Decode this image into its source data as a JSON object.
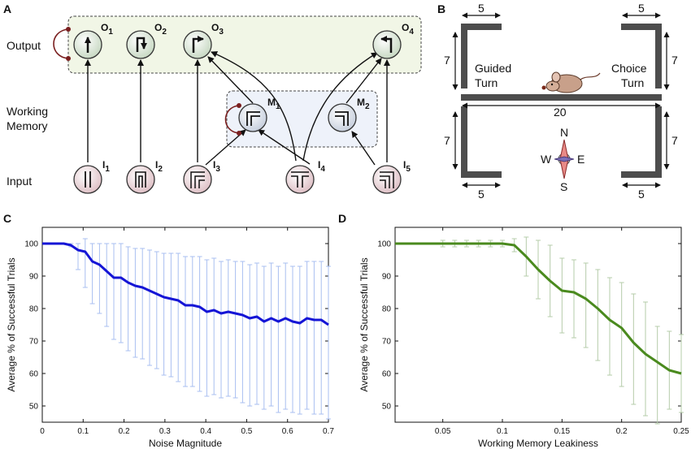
{
  "panel_labels": {
    "a": "A",
    "b": "B",
    "c": "C",
    "d": "D"
  },
  "panel_a": {
    "row_labels": {
      "output": "Output",
      "wm_line1": "Working",
      "wm_line2": "Memory",
      "input": "Input"
    },
    "nodes": {
      "O1": {
        "letter": "O",
        "sub": "1"
      },
      "O2": {
        "letter": "O",
        "sub": "2"
      },
      "O3": {
        "letter": "O",
        "sub": "3"
      },
      "O4": {
        "letter": "O",
        "sub": "4"
      },
      "M1": {
        "letter": "M",
        "sub": "1"
      },
      "M2": {
        "letter": "M",
        "sub": "2"
      },
      "I1": {
        "letter": "I",
        "sub": "1"
      },
      "I2": {
        "letter": "I",
        "sub": "2"
      },
      "I3": {
        "letter": "I",
        "sub": "3"
      },
      "I4": {
        "letter": "I",
        "sub": "4"
      },
      "I5": {
        "letter": "I",
        "sub": "5"
      }
    },
    "colors": {
      "output_node": "#dfeadb",
      "wm_node": "#dde3ec",
      "input_node": "#ecd6da",
      "output_box": "#f1f6e6",
      "wm_box": "#eef2fa",
      "inhibition": "#7a1f1f"
    }
  },
  "panel_b": {
    "dims": {
      "top_left": "5",
      "top_right": "5",
      "bottom_left": "5",
      "bottom_right": "5",
      "left_upper": "7",
      "right_upper": "7",
      "left_lower": "7",
      "right_lower": "7",
      "center": "20"
    },
    "guided_line1": "Guided",
    "guided_line2": "Turn",
    "choice_line1": "Choice",
    "choice_line2": "Turn",
    "compass": {
      "n": "N",
      "s": "S",
      "e": "E",
      "w": "W"
    }
  },
  "chart_data": [
    {
      "type": "line",
      "panel": "C",
      "xlabel": "Noise Magnitude",
      "ylabel": "Average % of Successful Trials",
      "xlim": [
        0,
        0.7
      ],
      "ylim": [
        45,
        105
      ],
      "xticks": [
        0,
        0.1,
        0.2,
        0.3,
        0.4,
        0.5,
        0.6,
        0.7
      ],
      "yticks": [
        50,
        60,
        70,
        80,
        90,
        100
      ],
      "line_color": "#1515d6",
      "error_color": "#a9bff0",
      "series": [
        {
          "name": "mean",
          "x": [
            0,
            0.0175,
            0.035,
            0.0525,
            0.07,
            0.0875,
            0.105,
            0.1225,
            0.14,
            0.1575,
            0.175,
            0.1925,
            0.21,
            0.2275,
            0.245,
            0.2625,
            0.28,
            0.2975,
            0.315,
            0.3325,
            0.35,
            0.3675,
            0.385,
            0.4025,
            0.42,
            0.4375,
            0.455,
            0.4725,
            0.49,
            0.5075,
            0.525,
            0.5425,
            0.56,
            0.5775,
            0.595,
            0.6125,
            0.63,
            0.6475,
            0.665,
            0.6825,
            0.7
          ],
          "values": [
            100,
            100,
            100,
            100,
            99.5,
            98,
            97.5,
            94.5,
            93.5,
            91.5,
            89.5,
            89.5,
            88,
            87,
            86.5,
            85.5,
            84.5,
            83.5,
            83,
            82.5,
            81,
            81,
            80.5,
            79,
            79.5,
            78.5,
            79,
            78.5,
            78,
            77,
            77.5,
            76,
            77,
            76,
            77,
            76,
            75.5,
            77,
            76.5,
            76.5,
            75
          ],
          "err_low": [
            0,
            0,
            0,
            0,
            0.5,
            6,
            11,
            13,
            15,
            17,
            19,
            20,
            21,
            22,
            22,
            23,
            23,
            24,
            24,
            25,
            25,
            25,
            26,
            26,
            26,
            26,
            26,
            26,
            27,
            27,
            27,
            27,
            27,
            28,
            28,
            28,
            28,
            28,
            29,
            29,
            29
          ],
          "err_high": [
            0,
            0,
            0,
            0,
            0.5,
            2,
            4,
            5.5,
            6.5,
            8.5,
            10.5,
            10.5,
            11,
            11.5,
            12,
            12.5,
            13,
            13.5,
            14,
            14.5,
            15,
            15,
            15.5,
            16,
            16,
            16,
            16,
            16,
            16.5,
            16.5,
            16.5,
            17,
            17,
            17,
            17,
            17,
            17.5,
            17.5,
            18,
            18,
            18
          ]
        }
      ]
    },
    {
      "type": "line",
      "panel": "D",
      "xlabel": "Working Memory Leakiness",
      "ylabel": "Average % of Successful Trials",
      "xlim": [
        0.01,
        0.25
      ],
      "ylim": [
        45,
        105
      ],
      "xticks": [
        0.05,
        0.1,
        0.15,
        0.2,
        0.25
      ],
      "yticks": [
        50,
        60,
        70,
        80,
        90,
        100
      ],
      "line_color": "#4a8a1e",
      "error_color": "#b5ccaa",
      "series": [
        {
          "name": "mean",
          "x": [
            0.01,
            0.02,
            0.03,
            0.04,
            0.05,
            0.06,
            0.07,
            0.08,
            0.09,
            0.1,
            0.11,
            0.12,
            0.13,
            0.14,
            0.15,
            0.16,
            0.17,
            0.18,
            0.19,
            0.2,
            0.21,
            0.22,
            0.23,
            0.24,
            0.25
          ],
          "values": [
            100,
            100,
            100,
            100,
            100,
            100,
            100,
            100,
            100,
            100,
            99.5,
            96,
            92,
            88.5,
            85.5,
            85,
            83,
            80,
            76.5,
            74,
            69.5,
            66,
            63.5,
            61,
            60
          ],
          "err_low": [
            0,
            0,
            0,
            0,
            1,
            1,
            1,
            1,
            1,
            1,
            2,
            6,
            9,
            11,
            13,
            14,
            15,
            16,
            17,
            18,
            19,
            19,
            19,
            12,
            12
          ],
          "err_high": [
            0,
            0,
            0,
            0,
            1,
            1,
            1,
            1,
            1,
            1,
            2,
            6,
            9,
            11,
            10,
            10,
            11,
            12,
            13,
            14,
            15,
            16,
            11,
            12,
            12
          ]
        }
      ]
    }
  ]
}
